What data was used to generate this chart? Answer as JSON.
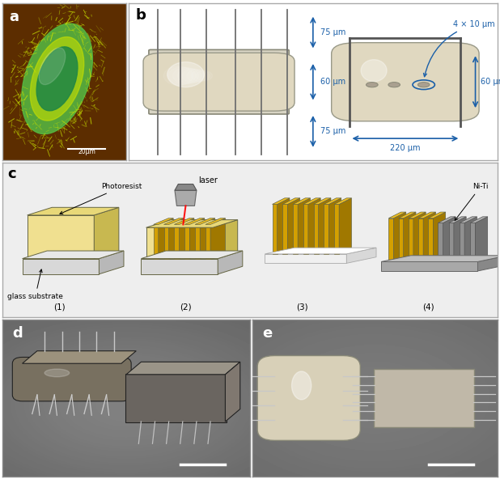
{
  "bg_color_a": "#5c2d00",
  "bacterium_outer": "#c8e000",
  "bacterium_mid": "#55bb44",
  "bacterium_inner": "#228844",
  "dim_color": "#1a5fa8",
  "dim_text_75": "75 μm",
  "dim_text_60": "60 μm",
  "dim_text_220": "220 μm",
  "dim_text_4x10": "4 × 10 μm",
  "scale_text_a": "20μm",
  "photoresist_color": "#f0e090",
  "photoresist_top": "#e8d878",
  "photoresist_side": "#c8b850",
  "glass_color": "#d8d8d8",
  "glass_top": "#e8e8e8",
  "glass_side": "#b8b8b8",
  "gold_color": "#d4a000",
  "gold_top": "#f0c020",
  "gold_side": "#a07800",
  "metal_color": "#909090",
  "metal_top": "#b0b0b0",
  "metal_side": "#707070",
  "robot_body": "#c8bfa0",
  "panel_c_bg": "#eeeeee",
  "border_color": "#aaaaaa",
  "proc_label1": "Photoresist",
  "proc_label1b": "glass substrate",
  "proc_label2": "laser",
  "proc_label4": "Ni-Ti",
  "proc_labels": [
    "(1)",
    "(2)",
    "(3)",
    "(4)"
  ]
}
